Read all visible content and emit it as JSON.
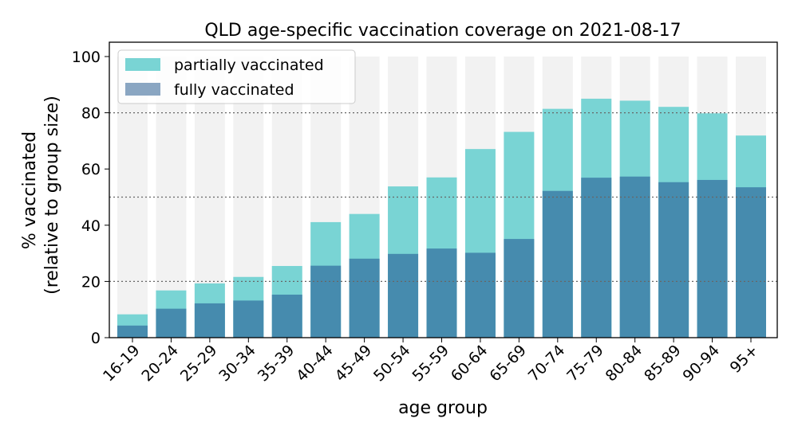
{
  "chart_data": {
    "type": "bar",
    "title": "QLD age-specific vaccination coverage on 2021-08-17",
    "xlabel": "age group",
    "ylabel_line1": "% vaccinated",
    "ylabel_line2": "(relative to group size)",
    "ylim": [
      0,
      100
    ],
    "yticks": [
      "0",
      "20",
      "40",
      "60",
      "80",
      "100"
    ],
    "reference_lines": [
      20,
      50,
      80
    ],
    "legend_position": "top-left",
    "categories": [
      "16-19",
      "20-24",
      "25-29",
      "30-34",
      "35-39",
      "40-44",
      "45-49",
      "50-54",
      "55-59",
      "60-64",
      "65-69",
      "70-74",
      "75-79",
      "80-84",
      "85-89",
      "90-94",
      "95+"
    ],
    "series": [
      {
        "name": "partially vaccinated",
        "color": "#79d4d4",
        "values": [
          8.3,
          16.8,
          19.3,
          21.6,
          25.5,
          41.1,
          44.0,
          53.8,
          57.0,
          67.1,
          73.2,
          81.4,
          85.0,
          84.3,
          82.1,
          79.8,
          71.9
        ]
      },
      {
        "name": "fully vaccinated",
        "color": "#468bae",
        "legend_color": "#8aa6c2",
        "values": [
          4.3,
          10.3,
          12.2,
          13.2,
          15.3,
          25.6,
          28.1,
          29.8,
          31.7,
          30.2,
          35.1,
          52.2,
          56.9,
          57.3,
          55.3,
          56.1,
          53.5
        ]
      }
    ],
    "background_bar_color": "#f2f2f2",
    "background_bar_value": 100
  }
}
